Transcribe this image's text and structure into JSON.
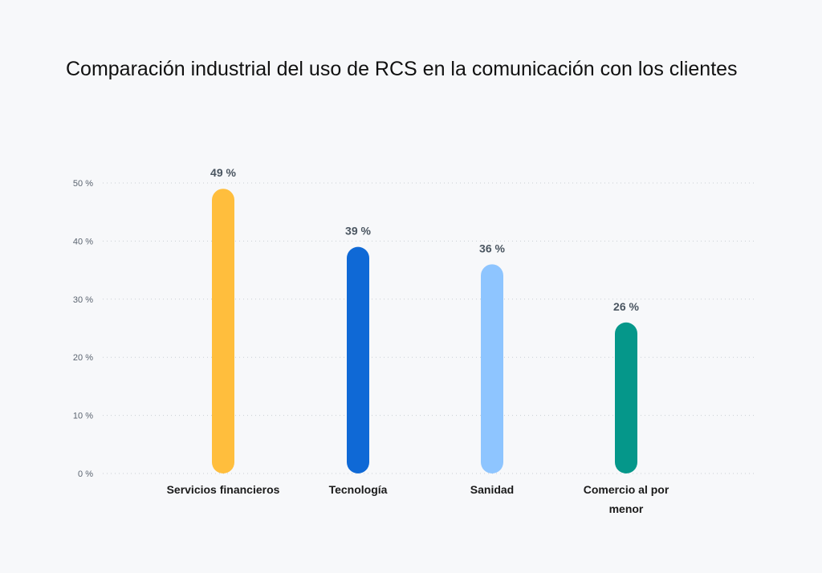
{
  "chart_data": {
    "type": "bar",
    "title": "Comparación industrial del uso de RCS en la comunicación con los clientes",
    "xlabel": "",
    "ylabel": "",
    "ylim": [
      0,
      50
    ],
    "yticks": [
      0,
      10,
      20,
      30,
      40,
      50
    ],
    "ytick_labels": [
      "0 %",
      "10 %",
      "20 %",
      "30 %",
      "40 %",
      "50 %"
    ],
    "grid": true,
    "categories": [
      [
        "Servicios financieros"
      ],
      [
        "Tecnología"
      ],
      [
        "Sanidad"
      ],
      [
        "Comercio al por",
        "menor"
      ]
    ],
    "values": [
      49,
      39,
      36,
      26
    ],
    "value_labels": [
      "49 %",
      "39 %",
      "36 %",
      "26 %"
    ],
    "colors": [
      "#ffbe3d",
      "#0f69d6",
      "#8ec5ff",
      "#05978a"
    ]
  }
}
